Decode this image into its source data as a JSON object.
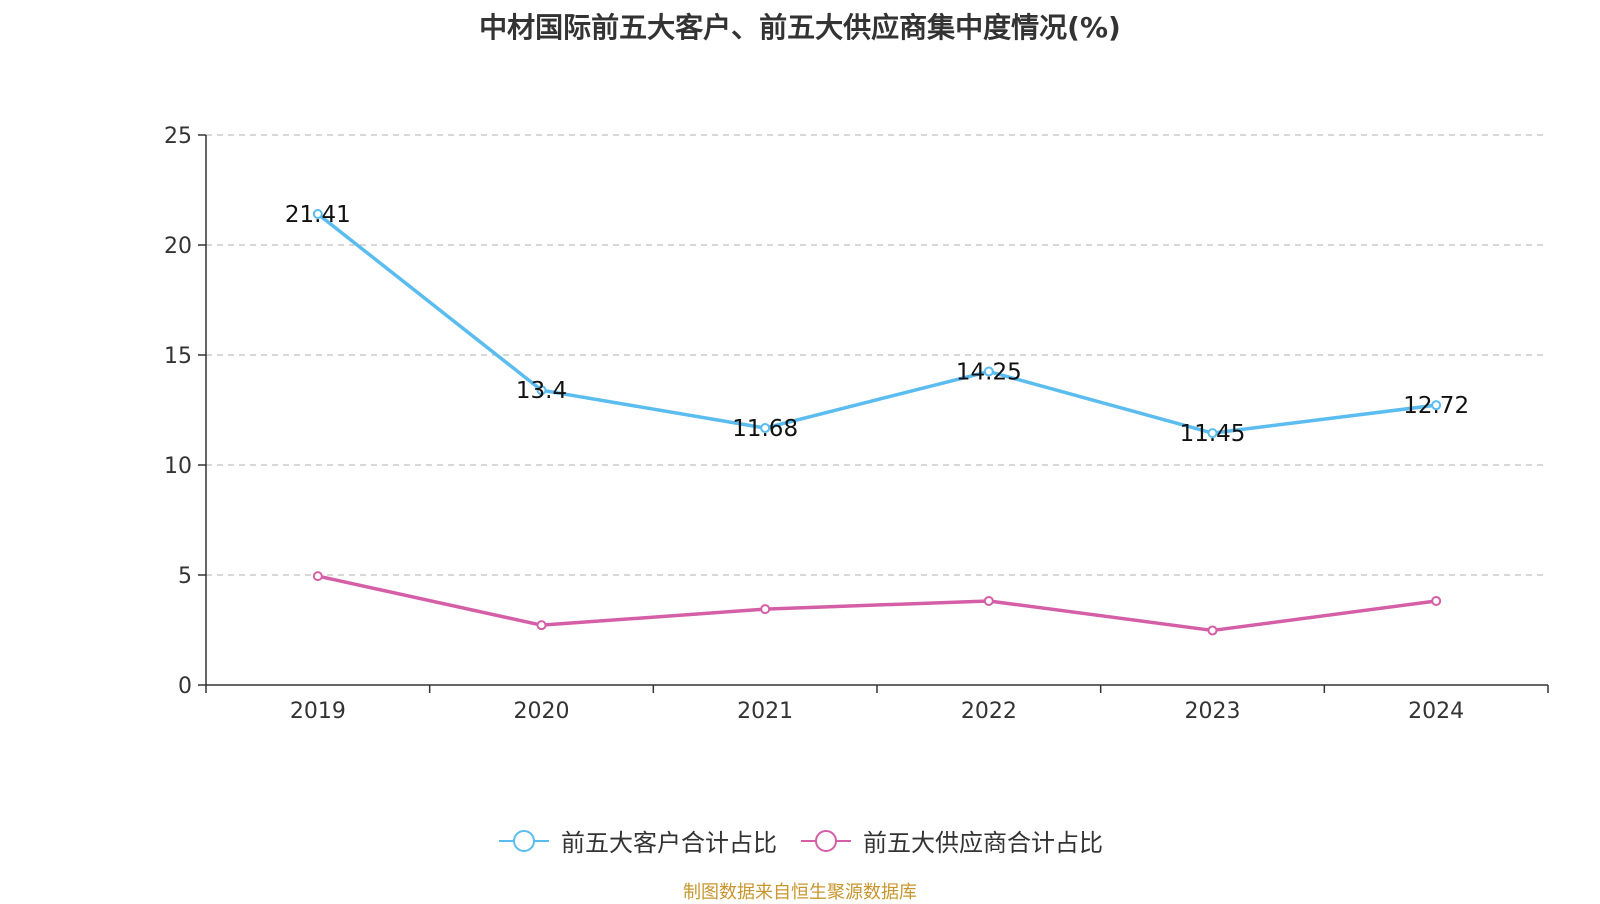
{
  "title": "中材国际前五大客户、前五大供应商集中度情况(%)",
  "source": "制图数据来自恒生聚源数据库",
  "colors": {
    "series1": "#5bbcf0",
    "series2": "#d55fa7",
    "grid": "#cccccc",
    "axis": "#333333",
    "text": "#333333",
    "source": "#c8962d"
  },
  "chart_data": {
    "type": "line",
    "categories": [
      "2019",
      "2020",
      "2021",
      "2022",
      "2023",
      "2024"
    ],
    "ylim": [
      0,
      25
    ],
    "yticks": [
      0,
      5,
      10,
      15,
      20,
      25
    ],
    "grid": true,
    "legend_position": "bottom",
    "series": [
      {
        "name": "前五大客户合计占比",
        "values": [
          21.41,
          13.4,
          11.68,
          14.25,
          11.45,
          12.72
        ],
        "labels": [
          "21.41",
          "13.4",
          "11.68",
          "14.25",
          "11.45",
          "12.72"
        ],
        "color": "#5bbcf0"
      },
      {
        "name": "前五大供应商合计占比",
        "values": [
          4.95,
          2.72,
          3.45,
          3.82,
          2.48,
          3.82
        ],
        "color": "#d55fa7"
      }
    ]
  }
}
